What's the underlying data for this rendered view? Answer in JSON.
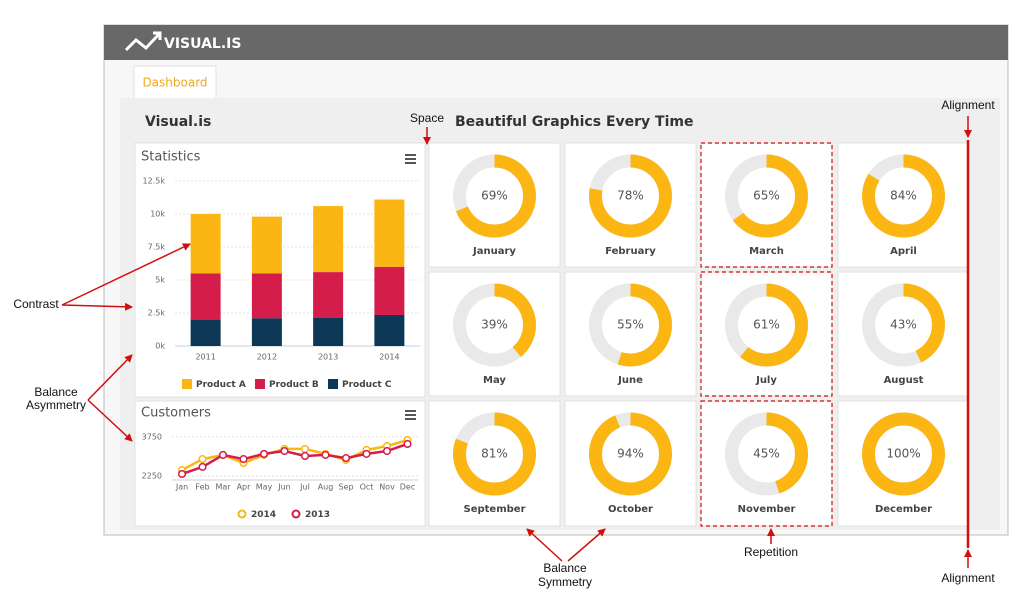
{
  "header": {
    "brand": "VISUAL.IS",
    "tab": "Dashboard",
    "site_title": "Visual.is",
    "headline": "Beautiful Graphics Every Time"
  },
  "annotations": {
    "space": "Space",
    "alignment_top": "Alignment",
    "alignment_bottom": "Alignment",
    "contrast": "Contrast",
    "balance_asymmetry": [
      "Balance",
      "Asymmetry"
    ],
    "balance_symmetry": [
      "Balance",
      "Symmetry"
    ],
    "repetition": "Repetition"
  },
  "chart_data": [
    {
      "type": "stacked_bar",
      "title": "Statistics",
      "categories": [
        "2011",
        "2012",
        "2013",
        "2014"
      ],
      "series": [
        {
          "name": "Product C",
          "color": "#0c3856",
          "values": [
            2000,
            2100,
            2150,
            2350
          ]
        },
        {
          "name": "Product B",
          "color": "#d41d4b",
          "values": [
            3500,
            3400,
            3450,
            3650
          ]
        },
        {
          "name": "Product A",
          "color": "#fbb614",
          "values": [
            4500,
            4300,
            5000,
            5100
          ]
        }
      ],
      "legend_order": [
        2,
        1,
        0
      ],
      "ylim": [
        0,
        12500
      ],
      "yticks": [
        {
          "value": 0,
          "label": "0k"
        },
        {
          "value": 2500,
          "label": "2.5k"
        },
        {
          "value": 5000,
          "label": "5k"
        },
        {
          "value": 7500,
          "label": "7.5k"
        },
        {
          "value": 10000,
          "label": "10k"
        },
        {
          "value": 12500,
          "label": "12.5k"
        }
      ],
      "grid": true
    },
    {
      "type": "line",
      "title": "Customers",
      "categories": [
        "Jan",
        "Feb",
        "Mar",
        "Apr",
        "May",
        "Jun",
        "Jul",
        "Aug",
        "Sep",
        "Oct",
        "Nov",
        "Dec"
      ],
      "series": [
        {
          "name": "2014",
          "color": "#fbb614",
          "values": [
            2480,
            2900,
            3060,
            2750,
            3060,
            3290,
            3290,
            3100,
            2870,
            3250,
            3400,
            3630
          ]
        },
        {
          "name": "2013",
          "color": "#d41d4b",
          "values": [
            2330,
            2600,
            3060,
            2900,
            3100,
            3210,
            3020,
            3060,
            2940,
            3100,
            3210,
            3480
          ]
        }
      ],
      "ylim": [
        2100,
        3900
      ],
      "yticks": [
        2250,
        3750
      ],
      "grid": true
    },
    {
      "type": "donut",
      "categories": [
        "January",
        "February",
        "March",
        "April",
        "May",
        "June",
        "July",
        "August",
        "September",
        "October",
        "November",
        "December"
      ],
      "values": [
        69,
        78,
        65,
        84,
        39,
        55,
        61,
        43,
        81,
        94,
        45,
        100
      ],
      "value_labels": [
        "69%",
        "78%",
        "65%",
        "84%",
        "39%",
        "55%",
        "61%",
        "43%",
        "81%",
        "94%",
        "45%",
        "100%"
      ],
      "color": "#fbb614",
      "track_color": "#e9e9e9"
    }
  ]
}
